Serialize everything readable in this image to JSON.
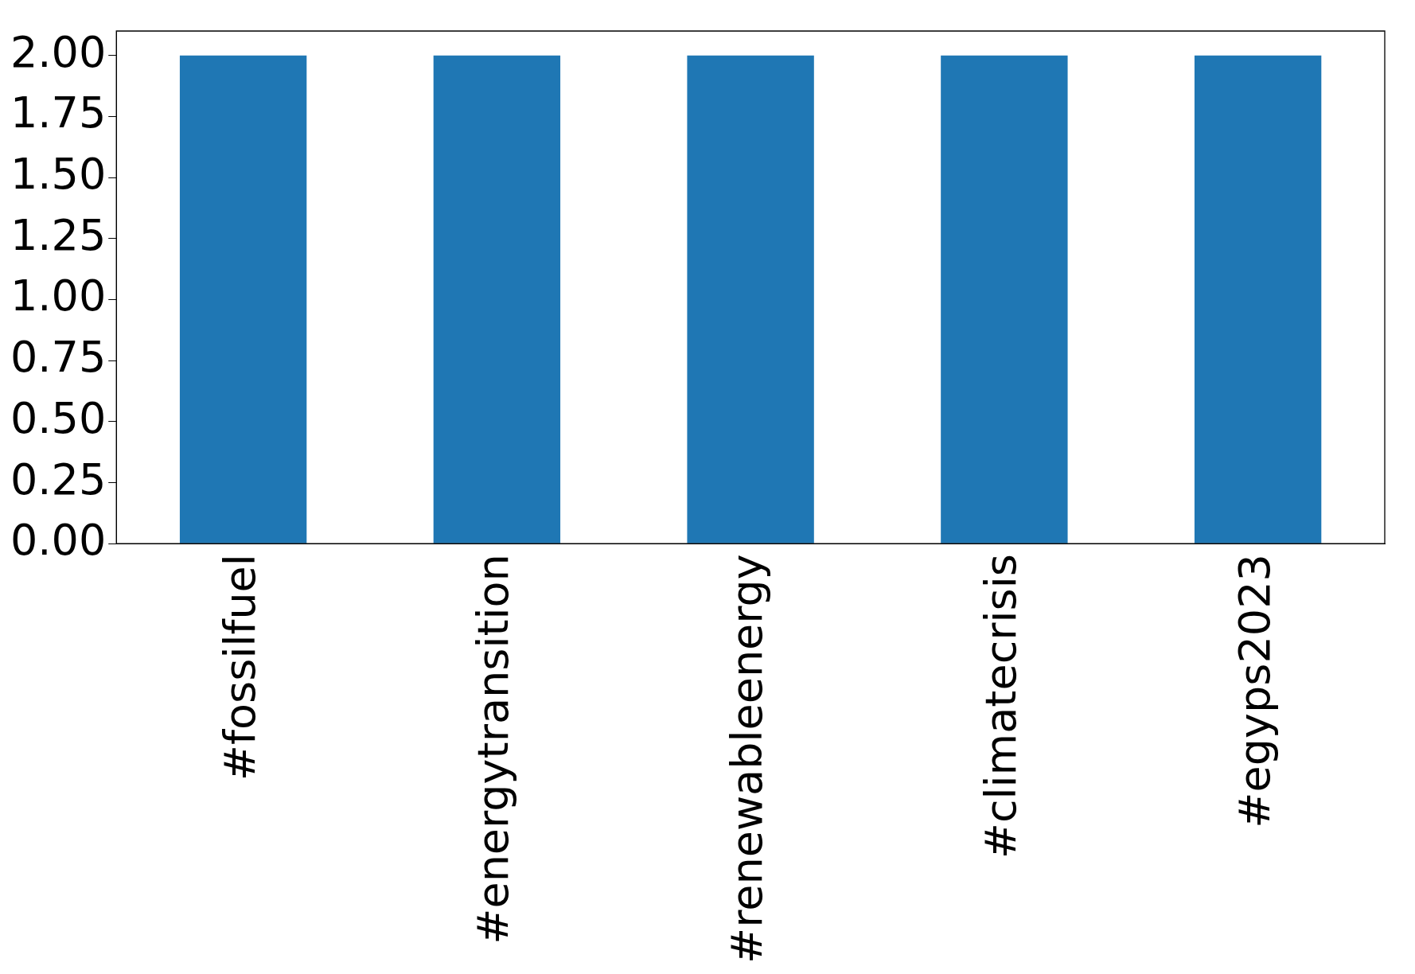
{
  "chart_data": {
    "type": "bar",
    "categories": [
      "#fossilfuel",
      "#energytransition",
      "#renewableenergy",
      "#climatecrisis",
      "#egyps2023"
    ],
    "values": [
      2,
      2,
      2,
      2,
      2
    ],
    "color": "#1f77b4",
    "ylim": [
      0,
      2.1
    ],
    "yticks": [
      {
        "value": 0,
        "label": "0.00"
      },
      {
        "value": 0.25,
        "label": "0.25"
      },
      {
        "value": 0.5,
        "label": "0.50"
      },
      {
        "value": 0.75,
        "label": "0.75"
      },
      {
        "value": 1,
        "label": "1.00"
      },
      {
        "value": 1.25,
        "label": "1.25"
      },
      {
        "value": 1.5,
        "label": "1.50"
      },
      {
        "value": 1.75,
        "label": "1.75"
      },
      {
        "value": 2,
        "label": "2.00"
      }
    ],
    "grid": false,
    "legend": false
  }
}
